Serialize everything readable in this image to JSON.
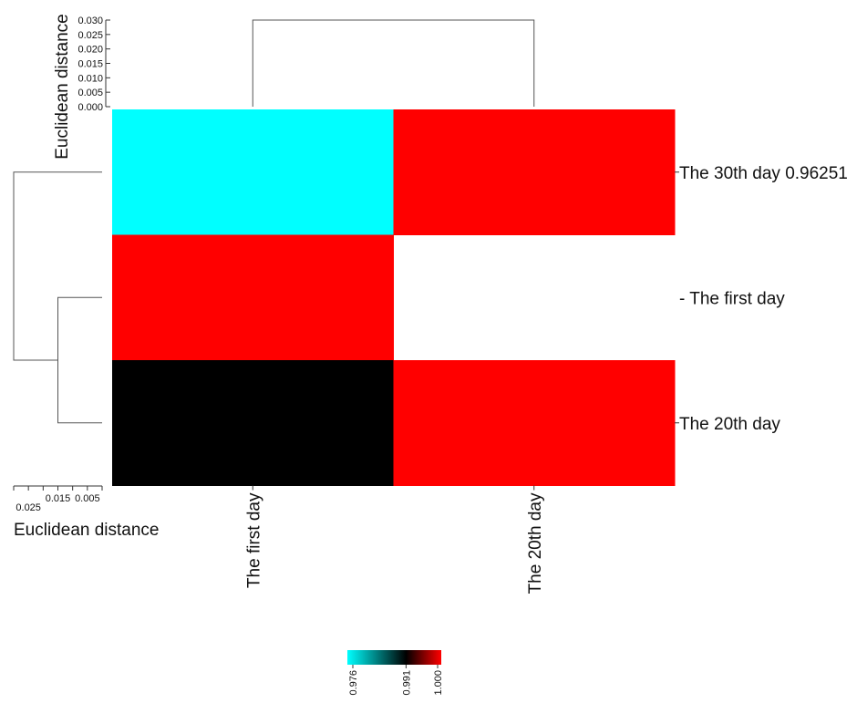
{
  "chart_data": {
    "type": "heatmap",
    "columns": [
      "The first day",
      "The 20th day"
    ],
    "rows": [
      {
        "label": "The 30th day 0.96251",
        "prefix": "",
        "values": [
          0.976,
          1.0
        ]
      },
      {
        "label": "The first day",
        "prefix": "- ",
        "values": [
          1.0,
          null
        ]
      },
      {
        "label": "The 20th day",
        "prefix": "",
        "values": [
          0.991,
          1.0
        ]
      }
    ],
    "top_dendrogram": {
      "axis_label": "Euclidean distance",
      "ticks": [
        "0.030",
        "0.025",
        "0.020",
        "0.015",
        "0.010",
        "0.005",
        "0.000"
      ],
      "max": 0.03,
      "merge_height": 0.03
    },
    "left_dendrogram": {
      "axis_label": "Euclidean distance",
      "ticks": [
        "0.025",
        "0.015",
        "0.005"
      ],
      "max": 0.03,
      "inner_merge_height": 0.015,
      "outer_merge_height": 0.03
    },
    "colorscale": {
      "min": 0.976,
      "max": 1.0,
      "stops": [
        {
          "value": 0.976,
          "color": "#00ffff"
        },
        {
          "value": 0.991,
          "color": "#000000"
        },
        {
          "value": 1.0,
          "color": "#ff0000"
        }
      ],
      "tick_labels": [
        "0.976",
        "0.991",
        "1.000"
      ]
    }
  }
}
